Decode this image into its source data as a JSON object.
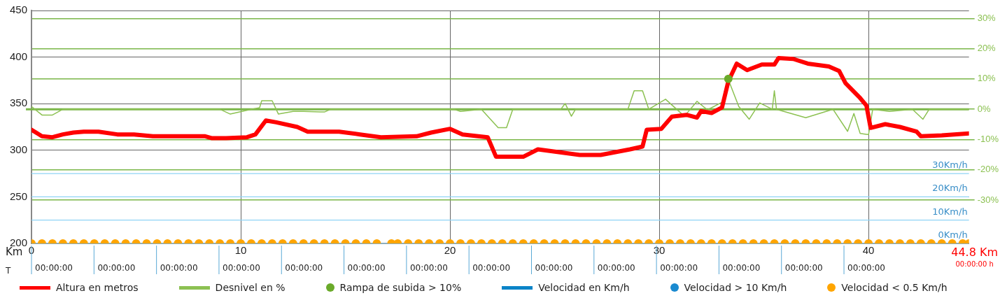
{
  "chart_data": {
    "type": "line",
    "xlabel": "Km",
    "legend": "bottom",
    "grid": true,
    "xlim": [
      0,
      44.8
    ],
    "xticks": [
      0,
      10,
      20,
      30,
      40
    ],
    "ylim": [
      200,
      450
    ],
    "yticks": [
      200,
      250,
      300,
      350,
      400,
      450
    ],
    "y2lim": [
      -44.3,
      32.6
    ],
    "y2ticks": [
      {
        "value": -30,
        "label": "-30%"
      },
      {
        "value": -20,
        "label": "-20%"
      },
      {
        "value": -10,
        "label": "-10%"
      },
      {
        "value": 0,
        "label": "0%"
      },
      {
        "value": 10,
        "label": "10%"
      },
      {
        "value": 20,
        "label": "20%"
      },
      {
        "value": 30,
        "label": "30%"
      }
    ],
    "y3lim": [
      0,
      100
    ],
    "y3ticks": [
      {
        "value": 0,
        "label": "0Km/h"
      },
      {
        "value": 10,
        "label": "10Km/h"
      },
      {
        "value": 20,
        "label": "20Km/h"
      },
      {
        "value": 30,
        "label": "30Km/h"
      }
    ],
    "ref_lines": [
      {
        "axis": "y2",
        "value": 0,
        "color": "#7ab648"
      }
    ],
    "annotations": [
      "44.8 Km",
      "00:00:00 h",
      "T",
      "00:00:00",
      "00:00:00",
      "00:00:00",
      "00:00:00",
      "00:00:00",
      "00:00:00",
      "00:00:00",
      "00:00:00",
      "00:00:00",
      "00:00:00",
      "00:00:00",
      "00:00:00",
      "00:00:00",
      "00:00:00"
    ],
    "series": [
      {
        "name": "Altura en metros",
        "type": "line",
        "color": "#ff0000",
        "x": [
          0,
          0.5,
          1,
          1.5,
          2,
          2.5,
          3.2,
          4.1,
          4.9,
          5.8,
          6.6,
          8.3,
          8.6,
          9.3,
          10.3,
          10.7,
          11.2,
          11.7,
          12.7,
          13.2,
          13.7,
          14.7,
          15.7,
          16.7,
          18.4,
          19.1,
          20,
          20.6,
          21.8,
          22.2,
          23.5,
          24.2,
          25.2,
          26.2,
          27.2,
          27.9,
          28.6,
          29.2,
          29.4,
          30.1,
          30.6,
          31.3,
          31.8,
          32,
          32.5,
          33,
          33.3,
          33.7,
          34.2,
          34.9,
          35.5,
          35.7,
          36.4,
          37.1,
          38.1,
          38.6,
          38.9,
          39.6,
          39.9,
          40.1,
          40.8,
          41.5,
          42.3,
          42.5,
          43.5,
          44.8
        ],
        "values": [
          322,
          315,
          314,
          317,
          319,
          320,
          320,
          317,
          317,
          315,
          315,
          315,
          313,
          313,
          314,
          317,
          332,
          330,
          325,
          320,
          320,
          320,
          317,
          314,
          315,
          319,
          323,
          317,
          314,
          293,
          293,
          301,
          298,
          295,
          295,
          298,
          301,
          304,
          322,
          323,
          336,
          338,
          335,
          342,
          340,
          346,
          374,
          393,
          386,
          392,
          392,
          399,
          398,
          393,
          390,
          385,
          372,
          356,
          348,
          324,
          328,
          325,
          320,
          315,
          316,
          318
        ]
      },
      {
        "name": "Desnivel en %",
        "type": "line",
        "color": "#8cc152",
        "axis": "y2",
        "x": [
          0,
          0.5,
          1,
          1.5,
          9,
          9.5,
          10.5,
          10.9,
          11,
          11.5,
          11.8,
          12.5,
          13,
          13.8,
          14,
          14.3,
          20.2,
          20.5,
          21.5,
          22.3,
          22.7,
          23,
          25.3,
          25.5,
          25.8,
          26,
          28.5,
          28.8,
          29.2,
          29.5,
          30.3,
          31.2,
          31.8,
          32.3,
          33,
          33.3,
          33.8,
          34.3,
          34.8,
          35.4,
          35.5,
          35.6,
          37,
          38.3,
          39,
          39.3,
          39.6,
          40,
          40.2,
          41,
          42.1,
          42.6,
          42.9,
          44.8
        ],
        "values": [
          0.9,
          -1.9,
          -1.9,
          0,
          0,
          -1.6,
          0,
          0.5,
          2.8,
          2.8,
          -1.6,
          -0.7,
          -0.7,
          -0.9,
          -0.9,
          0,
          0,
          -0.7,
          0,
          -6.1,
          -6.1,
          0,
          0,
          1.9,
          -2.3,
          0,
          0,
          6.1,
          6.1,
          0,
          3.3,
          -2.3,
          2.6,
          -0.2,
          2.3,
          9.8,
          0.9,
          -3.3,
          2.1,
          0,
          6.1,
          0,
          -2.8,
          0,
          -7.3,
          -1.4,
          -8,
          -8.4,
          0,
          -0.7,
          0,
          -3.3,
          0,
          0
        ]
      },
      {
        "name": "Rampa de subida > 10%",
        "type": "scatter",
        "color": "#6aaa2a",
        "axis": "y2",
        "x": [
          33.3
        ],
        "values": [
          10
        ]
      },
      {
        "name": "Velocidad en Km/h",
        "type": "line",
        "color": "#0a84c8",
        "axis": "y3"
      },
      {
        "name": "Velocidad > 10 Km/h",
        "type": "scatter",
        "color": "#1a8ad0",
        "axis": "y3"
      },
      {
        "name": "Velocidad < 0.5 Km/h",
        "type": "scatter",
        "color": "#ffa500",
        "axis": "y3",
        "x": [
          0,
          0.5,
          1,
          1.5,
          2,
          2.5,
          3,
          3.5,
          4,
          4.5,
          5,
          5.5,
          6,
          6.5,
          7,
          7.5,
          8,
          8.5,
          9,
          9.5,
          10,
          10.5,
          11,
          11.5,
          12,
          12.5,
          13,
          13.5,
          14,
          14.5,
          15,
          15.5,
          16,
          16.5,
          17.2,
          17.5,
          18,
          18.5,
          19,
          19.5,
          20,
          20.5,
          21,
          21.5,
          22,
          22.5,
          23,
          23.5,
          24,
          24.5,
          25,
          25.5,
          26,
          26.5,
          27,
          27.5,
          28,
          28.5,
          29,
          29.5,
          30,
          30.5,
          31,
          31.5,
          32,
          32.5,
          33,
          33.5,
          34,
          34.5,
          35,
          35.5,
          36,
          36.5,
          37,
          37.5,
          38,
          38.5,
          39,
          39.5,
          40,
          40.5,
          41,
          41.5,
          42,
          42.5,
          43,
          43.5,
          44,
          44.5,
          44.8
        ],
        "values": [
          0,
          0,
          0,
          0,
          0,
          0,
          0,
          0,
          0,
          0,
          0,
          0,
          0,
          0,
          0,
          0,
          0,
          0,
          0,
          0,
          0,
          0,
          0,
          0,
          0,
          0,
          0,
          0,
          0,
          0,
          0,
          0,
          0,
          0,
          0,
          0,
          0,
          0,
          0,
          0,
          0,
          0,
          0,
          0,
          0,
          0,
          0,
          0,
          0,
          0,
          0,
          0,
          0,
          0,
          0,
          0,
          0,
          0,
          0,
          0,
          0,
          0,
          0,
          0,
          0,
          0,
          0,
          0,
          0,
          0,
          0,
          0,
          0,
          0,
          0,
          0,
          0,
          0,
          0,
          0,
          0,
          0,
          0,
          0,
          0,
          0,
          0,
          0,
          0,
          0,
          0
        ]
      }
    ]
  }
}
